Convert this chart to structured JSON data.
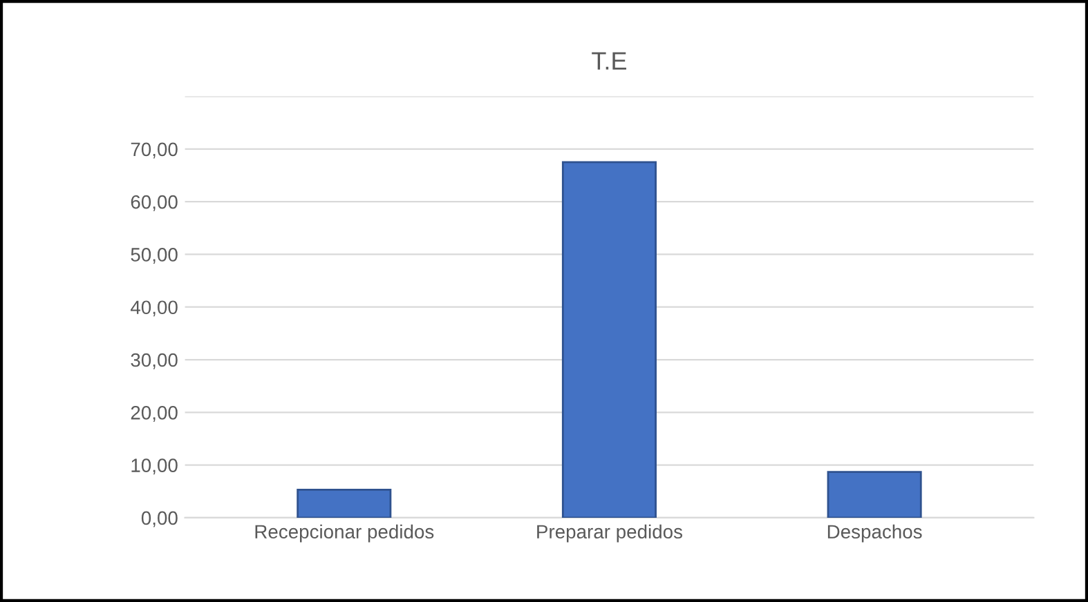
{
  "chart_data": {
    "type": "bar",
    "title": "T.E",
    "categories": [
      "Recepcionar pedidos",
      "Preparar pedidos",
      "Despachos"
    ],
    "values": [
      5.3,
      67.5,
      8.7
    ],
    "color": "#4472c4",
    "ylim": [
      0,
      80
    ],
    "yticks": [
      {
        "value": 0,
        "label": "0,00"
      },
      {
        "value": 10,
        "label": "10,00"
      },
      {
        "value": 20,
        "label": "20,00"
      },
      {
        "value": 30,
        "label": "30,00"
      },
      {
        "value": 40,
        "label": "40,00"
      },
      {
        "value": 50,
        "label": "50,00"
      },
      {
        "value": 60,
        "label": "60,00"
      },
      {
        "value": 70,
        "label": "70,00"
      },
      {
        "value": 80,
        "label": null
      }
    ],
    "grid": "y",
    "legend": false
  }
}
